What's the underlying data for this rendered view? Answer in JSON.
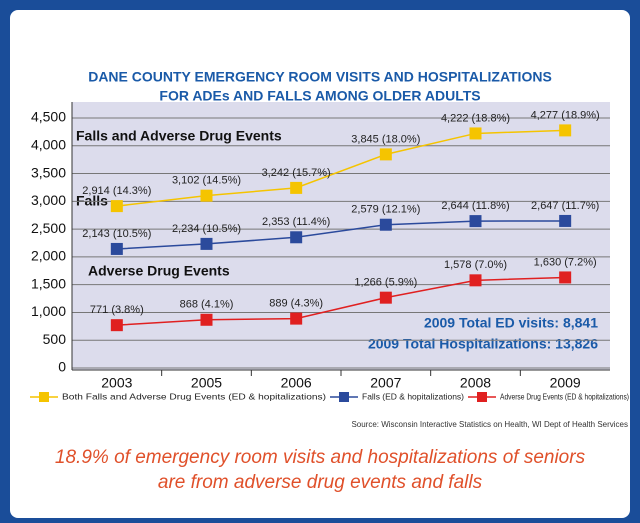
{
  "chart_data": {
    "type": "line",
    "title": [
      "DANE COUNTY EMERGENCY ROOM VISITS AND HOSPITALIZATIONS",
      "FOR ADEs AND FALLS AMONG OLDER ADULTS"
    ],
    "categories": [
      "2003",
      "2005",
      "2006",
      "2007",
      "2008",
      "2009"
    ],
    "series": [
      {
        "name": "Both Falls and Adverse Drug Events (ED & hopitalizations)",
        "color": "#f5c400",
        "values": [
          2914,
          3102,
          3242,
          3845,
          4222,
          4277
        ],
        "value_labels": [
          "2,914 (14.3%)",
          "3,102 (14.5%)",
          "3,242 (15.7%)",
          "3,845 (18.0%)",
          "4,222 (18.8%)",
          "4,277 (18.9%)"
        ]
      },
      {
        "name": "Falls (ED & hopitalizations)",
        "color": "#2b4a9c",
        "values": [
          2143,
          2234,
          2353,
          2579,
          2644,
          2647
        ],
        "value_labels": [
          "2,143 (10.5%)",
          "2,234 (10.5%)",
          "2,353 (11.4%)",
          "2,579 (12.1%)",
          "2,644 (11.8%)",
          "2,647 (11.7%)"
        ]
      },
      {
        "name": "Adverse Drug Events (ED & hopitalizations)",
        "color": "#e02020",
        "values": [
          771,
          868,
          889,
          1266,
          1578,
          1630
        ],
        "value_labels": [
          "771 (3.8%)",
          "868 (4.1%)",
          "889 (4.3%)",
          "1,266 (5.9%)",
          "1,578 (7.0%)",
          "1,630 (7.2%)"
        ]
      }
    ],
    "ylim": [
      0,
      4500
    ],
    "yticks": [
      0,
      500,
      {
        "value": 1000,
        "label": "1,000"
      },
      {
        "value": 1500,
        "label": "1,500"
      },
      {
        "value": 2000,
        "label": "2,000"
      },
      {
        "value": 2500,
        "label": "2,500"
      },
      {
        "value": 3000,
        "label": "3,000"
      },
      {
        "value": 3500,
        "label": "3,500"
      },
      {
        "value": 4000,
        "label": "4,000"
      },
      {
        "value": 4500,
        "label": "4,500"
      }
    ],
    "grid": true,
    "annotations": [
      "Falls and Adverse Drug Events",
      "Falls",
      "Adverse Drug Events",
      "2009 Total ED visits: 8,841",
      "2009 Total Hospitalizations: 13,826"
    ],
    "source": "Source: Wisconsin Interactive Statistics on Health, WI Dept of Health Services",
    "caption": [
      "18.9% of emergency room visits and hospitalizations of seniors",
      "are from adverse drug events and falls"
    ]
  }
}
